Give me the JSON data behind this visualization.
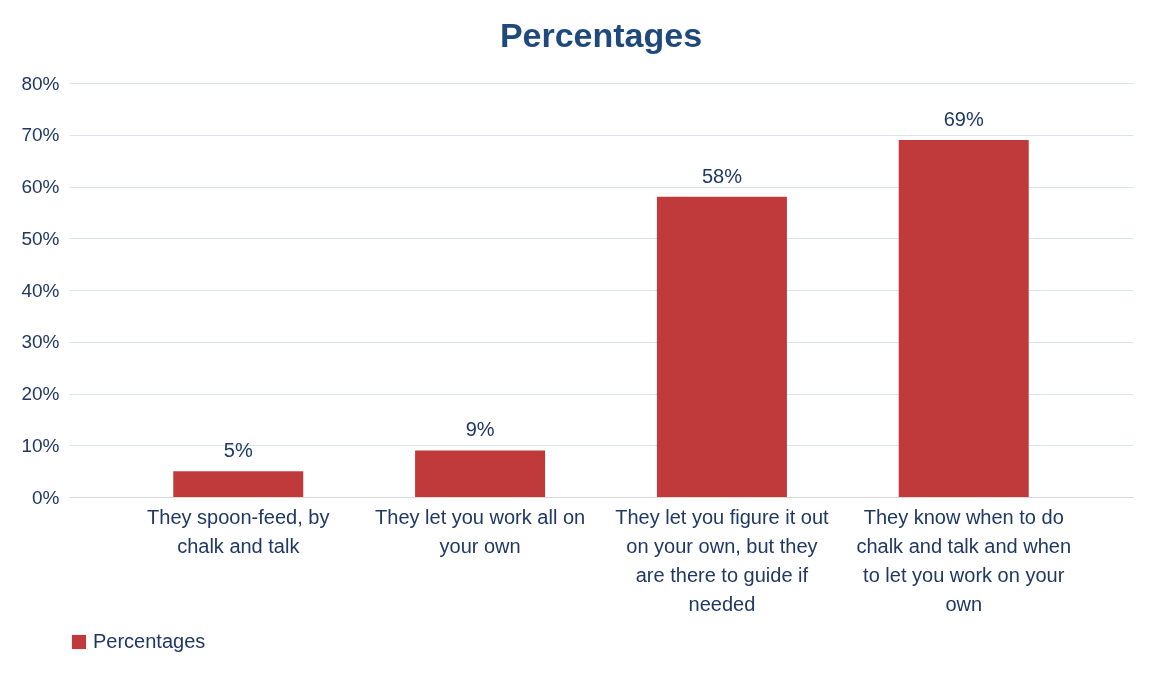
{
  "chart_data": {
    "type": "bar",
    "title": "Percentages",
    "categories": [
      "They spoon-feed, by chalk and talk",
      "They let you work all on your own",
      "They let you figure it out on your own, but they are there to guide if needed",
      "They know when to do chalk and talk and when to let you work on your own"
    ],
    "series": [
      {
        "name": "Percentages",
        "color": "#c0393b",
        "values": [
          5,
          9,
          58,
          69
        ],
        "value_labels": [
          "5%",
          "9%",
          "58%",
          "69%"
        ]
      }
    ],
    "ylim": [
      0,
      80
    ],
    "yticks": [
      {
        "value": 0,
        "label": "0%"
      },
      {
        "value": 10,
        "label": "10%"
      },
      {
        "value": 20,
        "label": "20%"
      },
      {
        "value": 30,
        "label": "30%"
      },
      {
        "value": 40,
        "label": "40%"
      },
      {
        "value": 50,
        "label": "50%"
      },
      {
        "value": 60,
        "label": "60%"
      },
      {
        "value": 70,
        "label": "70%"
      },
      {
        "value": 80,
        "label": "80%"
      }
    ],
    "grid": "y",
    "legend": "bottom"
  }
}
